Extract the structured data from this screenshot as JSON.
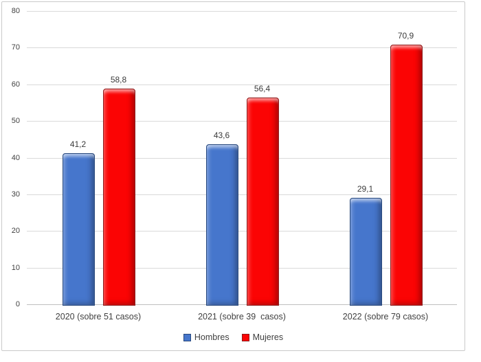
{
  "chart_data": {
    "type": "bar",
    "title": "",
    "categories": [
      "2020 (sobre 51 casos)",
      "2021 (sobre 39  casos)",
      "2022 (sobre 79 casos)"
    ],
    "series": [
      {
        "name": "Hombres",
        "values": [
          41.2,
          43.6,
          29.1
        ],
        "color": "#4676cc",
        "edge_color": "#26477c"
      },
      {
        "name": "Mujeres",
        "values": [
          58.8,
          56.4,
          70.9
        ],
        "color": "#fb0404",
        "edge_color": "#8d1b1b"
      }
    ],
    "value_labels": [
      [
        "41,2",
        "43,6",
        "29,1"
      ],
      [
        "58,8",
        "56,4",
        "70,9"
      ]
    ],
    "ylabel": "",
    "xlabel": "",
    "ylim": [
      0,
      80
    ],
    "yticks": [
      0,
      10,
      20,
      30,
      40,
      50,
      60,
      70,
      80
    ],
    "grid": true,
    "legend_position": "bottom",
    "gridline_color": "#d9d9d9",
    "axis_line_color": "#bfbfbf",
    "text_color": "#404040"
  }
}
